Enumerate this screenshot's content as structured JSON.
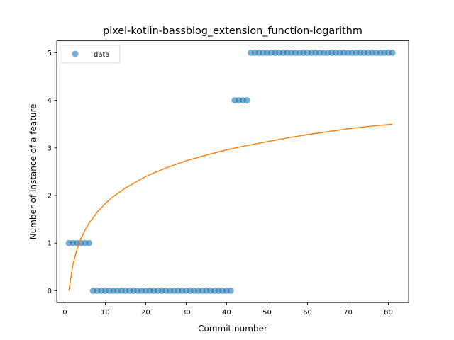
{
  "chart_data": {
    "type": "scatter",
    "title": "pixel-kotlin-bassblog_extension_function-logarithm",
    "xlabel": "Commit number",
    "ylabel": "Number of instance of a feature",
    "xlim": [
      -2,
      85
    ],
    "ylim": [
      -0.25,
      5.25
    ],
    "xticks": [
      "0",
      "10",
      "20",
      "30",
      "40",
      "50",
      "60",
      "70",
      "80"
    ],
    "yticks": [
      "0",
      "1",
      "2",
      "3",
      "4",
      "5"
    ],
    "legend": {
      "position": "top-left",
      "entries": [
        "data"
      ]
    },
    "grid": false,
    "series": [
      {
        "name": "data",
        "type": "scatter",
        "color": "#1f77b4",
        "x": [
          1,
          2,
          3,
          4,
          5,
          6,
          7,
          8,
          9,
          10,
          11,
          12,
          13,
          14,
          15,
          16,
          17,
          18,
          19,
          20,
          21,
          22,
          23,
          24,
          25,
          26,
          27,
          28,
          29,
          30,
          31,
          32,
          33,
          34,
          35,
          36,
          37,
          38,
          39,
          40,
          41,
          42,
          43,
          44,
          45,
          46,
          47,
          48,
          49,
          50,
          51,
          52,
          53,
          54,
          55,
          56,
          57,
          58,
          59,
          60,
          61,
          62,
          63,
          64,
          65,
          66,
          67,
          68,
          69,
          70,
          71,
          72,
          73,
          74,
          75,
          76,
          77,
          78,
          79,
          80,
          81
        ],
        "y": [
          1,
          1,
          1,
          1,
          1,
          1,
          0,
          0,
          0,
          0,
          0,
          0,
          0,
          0,
          0,
          0,
          0,
          0,
          0,
          0,
          0,
          0,
          0,
          0,
          0,
          0,
          0,
          0,
          0,
          0,
          0,
          0,
          0,
          0,
          0,
          0,
          0,
          0,
          0,
          0,
          0,
          4,
          4,
          4,
          4,
          5,
          5,
          5,
          5,
          5,
          5,
          5,
          5,
          5,
          5,
          5,
          5,
          5,
          5,
          5,
          5,
          5,
          5,
          5,
          5,
          5,
          5,
          5,
          5,
          5,
          5,
          5,
          5,
          5,
          5,
          5,
          5,
          5,
          5,
          5,
          5
        ]
      },
      {
        "type": "line",
        "color": "#ff7f0e",
        "fit": "logarithmic",
        "x": [
          1,
          2,
          3,
          4,
          5,
          6,
          8,
          10,
          12,
          15,
          20,
          25,
          30,
          35,
          40,
          45,
          50,
          55,
          60,
          65,
          70,
          75,
          81
        ],
        "y": [
          0.0,
          0.55,
          0.87,
          1.1,
          1.27,
          1.42,
          1.65,
          1.83,
          1.98,
          2.16,
          2.4,
          2.58,
          2.73,
          2.85,
          2.96,
          3.05,
          3.13,
          3.21,
          3.28,
          3.34,
          3.4,
          3.45,
          3.5
        ]
      }
    ]
  }
}
